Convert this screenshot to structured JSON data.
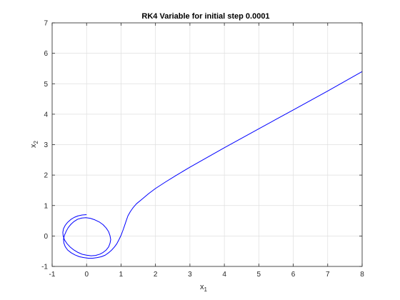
{
  "chart_data": {
    "type": "line",
    "title": "RK4 Variable for initial step 0.0001",
    "xlabel": "x",
    "xlabel_sub": "1",
    "ylabel": "x",
    "ylabel_sub": "2",
    "xlim": [
      -1,
      8
    ],
    "ylim": [
      -1,
      7
    ],
    "xticks": [
      -1,
      0,
      1,
      2,
      3,
      4,
      5,
      6,
      7,
      8
    ],
    "yticks": [
      -1,
      0,
      1,
      2,
      3,
      4,
      5,
      6,
      7
    ],
    "grid": true,
    "line_color": "#0000ff",
    "series": [
      {
        "x": [
          0,
          -0.13,
          -0.25,
          -0.36,
          -0.46,
          -0.55,
          -0.62,
          -0.67,
          -0.69,
          -0.68,
          -0.64,
          -0.57,
          -0.48,
          -0.37,
          -0.25,
          -0.13,
          0,
          0.13,
          0.26,
          0.38,
          0.48,
          0.57,
          0.64,
          0.68,
          0.7,
          0.68,
          0.64,
          0.57,
          0.48,
          0.37,
          0.24,
          0.11,
          -0.02,
          -0.14,
          -0.26,
          -0.36,
          -0.45,
          -0.53,
          -0.59,
          -0.64,
          -0.67,
          -0.66,
          -0.62,
          -0.55,
          -0.45,
          -0.34,
          -0.21,
          -0.08,
          0.05,
          0.18,
          0.31,
          0.43,
          0.54,
          0.64,
          0.73,
          0.81,
          0.88,
          0.94,
          1.0,
          1.05,
          1.1,
          1.15,
          1.2,
          1.27,
          1.35,
          1.45,
          1.6,
          1.8,
          2.0,
          2.3,
          2.6,
          3.0,
          3.5,
          4.0,
          4.5,
          5.0,
          5.5,
          6.0,
          6.5,
          7.0,
          7.5,
          8.0
        ],
        "y": [
          0.7,
          0.69,
          0.66,
          0.61,
          0.54,
          0.45,
          0.35,
          0.24,
          0.12,
          0,
          -0.13,
          -0.25,
          -0.36,
          -0.46,
          -0.54,
          -0.6,
          -0.63,
          -0.65,
          -0.64,
          -0.6,
          -0.54,
          -0.46,
          -0.36,
          -0.24,
          -0.12,
          0.01,
          0.14,
          0.26,
          0.37,
          0.46,
          0.53,
          0.58,
          0.6,
          0.59,
          0.55,
          0.48,
          0.39,
          0.28,
          0.16,
          0.03,
          -0.1,
          -0.23,
          -0.35,
          -0.46,
          -0.55,
          -0.62,
          -0.68,
          -0.71,
          -0.73,
          -0.73,
          -0.71,
          -0.68,
          -0.63,
          -0.55,
          -0.46,
          -0.36,
          -0.25,
          -0.12,
          0.02,
          0.17,
          0.33,
          0.5,
          0.66,
          0.8,
          0.93,
          1.06,
          1.2,
          1.39,
          1.56,
          1.78,
          1.99,
          2.26,
          2.58,
          2.9,
          3.21,
          3.52,
          3.83,
          4.14,
          4.45,
          4.76,
          5.08,
          5.4
        ]
      }
    ]
  }
}
